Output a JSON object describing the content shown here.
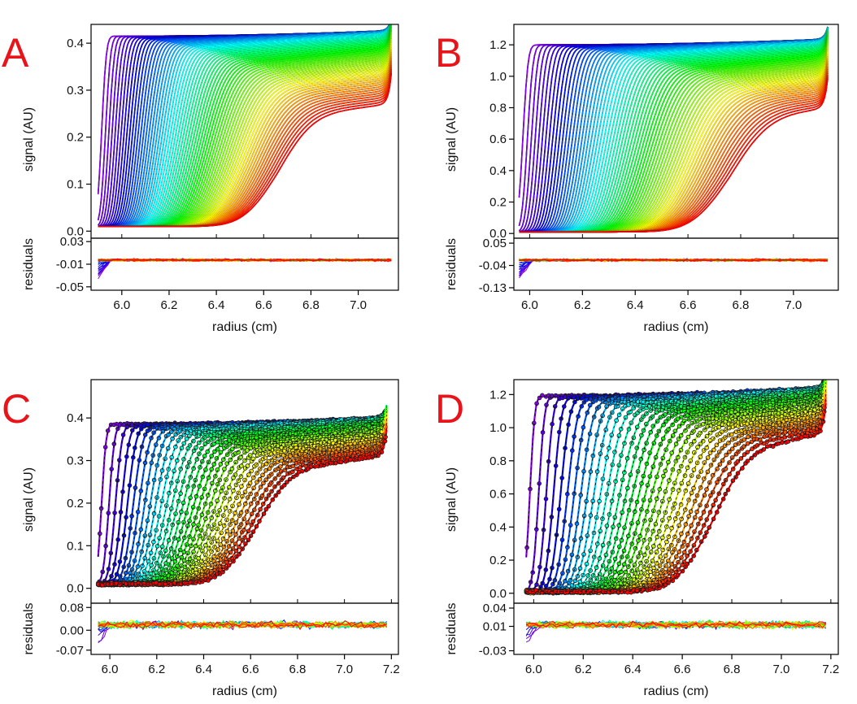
{
  "chart_data": [
    {
      "type": "line",
      "panel_label": "A",
      "style": "dense-lines",
      "scan_count": 70,
      "color_scale": "rainbow (violet early scans to red late scans)",
      "xlabel": "radius (cm)",
      "ylabel": "signal (AU)",
      "residuals_label": "residuals",
      "xlim": [
        5.87,
        7.17
      ],
      "x_ticks": [
        "6.0",
        "6.2",
        "6.4",
        "6.6",
        "6.8",
        "7.0"
      ],
      "ylim": [
        -0.015,
        0.44
      ],
      "y_ticks": [
        "0.0",
        "0.1",
        "0.2",
        "0.3",
        "0.4"
      ],
      "res_ylim": [
        -0.056,
        0.036
      ],
      "res_ticks": [
        "0.03",
        "-0.01",
        "-0.05"
      ],
      "meniscus": 5.9,
      "bottom": 7.14,
      "plateau": 0.415,
      "baseline": 0.01,
      "final_boundary": 6.66,
      "final_upper": 0.24
    },
    {
      "type": "line",
      "panel_label": "B",
      "style": "dense-lines",
      "scan_count": 70,
      "color_scale": "rainbow (violet early scans to red late scans)",
      "xlabel": "radius (cm)",
      "ylabel": "signal (AU)",
      "residuals_label": "residuals",
      "xlim": [
        5.94,
        7.17
      ],
      "x_ticks": [
        "6.0",
        "6.2",
        "6.4",
        "6.6",
        "6.8",
        "7.0"
      ],
      "ylim": [
        -0.03,
        1.33
      ],
      "y_ticks": [
        "0.0",
        "0.2",
        "0.4",
        "0.6",
        "0.8",
        "1.0",
        "1.2"
      ],
      "res_ylim": [
        -0.14,
        0.07
      ],
      "res_ticks": [
        "0.05",
        "-0.04",
        "-0.13"
      ],
      "meniscus": 5.96,
      "bottom": 7.13,
      "plateau": 1.2,
      "baseline": 0.01,
      "final_boundary": 6.76,
      "final_upper": 0.72
    },
    {
      "type": "scatter",
      "panel_label": "C",
      "style": "dotted-scans",
      "scan_count": 30,
      "color_scale": "rainbow (violet early scans to red late scans)",
      "xlabel": "radius (cm)",
      "ylabel": "signal (AU)",
      "residuals_label": "residuals",
      "xlim": [
        5.92,
        7.23
      ],
      "x_ticks": [
        "6.0",
        "6.2",
        "6.4",
        "6.6",
        "6.8",
        "7.0",
        "7.2"
      ],
      "ylim": [
        -0.035,
        0.49
      ],
      "y_ticks": [
        "0.0",
        "0.1",
        "0.2",
        "0.3",
        "0.4"
      ],
      "res_ylim": [
        -0.085,
        0.095
      ],
      "res_ticks": [
        "0.08",
        "0.00",
        "-0.07"
      ],
      "meniscus": 5.95,
      "bottom": 7.18,
      "plateau": 0.385,
      "baseline": 0.01,
      "final_boundary": 6.62,
      "final_upper": 0.27
    },
    {
      "type": "scatter",
      "panel_label": "D",
      "style": "dotted-scans",
      "scan_count": 30,
      "color_scale": "rainbow (violet early scans to red late scans)",
      "xlabel": "radius (cm)",
      "ylabel": "signal (AU)",
      "residuals_label": "residuals",
      "xlim": [
        5.92,
        7.23
      ],
      "x_ticks": [
        "6.0",
        "6.2",
        "6.4",
        "6.6",
        "6.8",
        "7.0",
        "7.2"
      ],
      "ylim": [
        -0.06,
        1.29
      ],
      "y_ticks": [
        "0.0",
        "0.2",
        "0.4",
        "0.6",
        "0.8",
        "1.0",
        "1.2"
      ],
      "res_ylim": [
        -0.036,
        0.048
      ],
      "res_ticks": [
        "0.04",
        "0.01",
        "-0.03"
      ],
      "meniscus": 5.97,
      "bottom": 7.18,
      "plateau": 1.19,
      "baseline": 0.01,
      "final_boundary": 6.72,
      "final_upper": 0.85
    }
  ],
  "colors": {
    "panel_label": "#e8141a",
    "axis": "#000000",
    "fit_line": "#000000"
  }
}
